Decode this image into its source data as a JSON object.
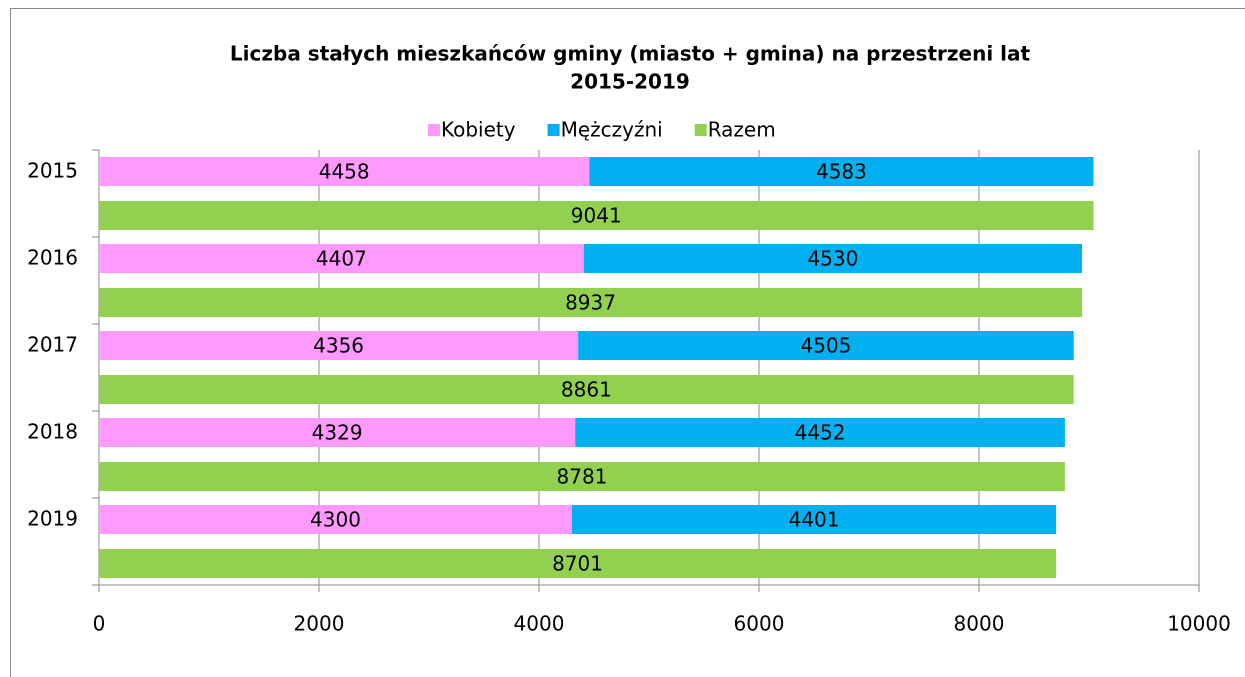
{
  "chart_data": {
    "type": "bar",
    "orientation": "horizontal",
    "title": [
      "Liczba stałych mieszkańców gminy (miasto + gmina) na przestrzeni lat",
      "2015-2019"
    ],
    "categories": [
      "2015",
      "2016",
      "2017",
      "2018",
      "2019"
    ],
    "series": [
      {
        "name": "Kobiety",
        "color": "#ff99ff",
        "stack": 0,
        "values": [
          4458,
          4407,
          4356,
          4329,
          4300
        ]
      },
      {
        "name": "Mężczyźni",
        "color": "#00b0f0",
        "stack": 0,
        "values": [
          4583,
          4530,
          4505,
          4452,
          4401
        ]
      },
      {
        "name": "Razem",
        "color": "#92d050",
        "stack": 1,
        "values": [
          9041,
          8937,
          8861,
          8781,
          8701
        ]
      }
    ],
    "xlim": [
      0,
      10000
    ],
    "xticks": [
      0,
      2000,
      4000,
      6000,
      8000,
      10000
    ],
    "grid": true,
    "legend": "top"
  }
}
